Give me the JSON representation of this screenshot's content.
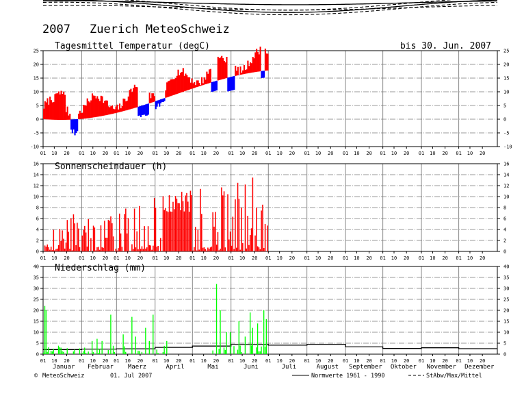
{
  "header": {
    "year": "2007",
    "station": "Zuerich MeteoSchweiz"
  },
  "chart_data": [
    {
      "type": "bar",
      "title": "Tagesmittel Temperatur (degC)",
      "date_label": "bis 30. Jun. 2007",
      "ylim": [
        -10,
        25
      ],
      "yticks": [
        "-10",
        "-5",
        "0",
        "5",
        "10",
        "15",
        "20",
        "25"
      ],
      "legend": [
        "Normwerte 1961 - 1990",
        "StAbw/Max/Mittel"
      ]
    },
    {
      "type": "bar",
      "title": "Sonnenscheindauer (h)",
      "ylim": [
        0,
        16
      ],
      "yticks": [
        "0",
        "2",
        "4",
        "6",
        "8",
        "10",
        "12",
        "14",
        "16"
      ]
    },
    {
      "type": "bar",
      "title": "Niederschlag (mm)",
      "ylim": [
        0,
        40
      ],
      "yticks": [
        "0",
        "5",
        "10",
        "15",
        "20",
        "25",
        "30",
        "35",
        "40"
      ]
    }
  ],
  "axis": {
    "day_ticks": [
      "01",
      "10",
      "20"
    ],
    "months": [
      "Januar",
      "Februar",
      "Maerz",
      "April",
      "Mai",
      "Juni",
      "Juli",
      "August",
      "September",
      "Oktober",
      "November",
      "Dezember"
    ]
  },
  "footer": {
    "copyright_symbol": "©",
    "copyright": "MeteoSchweiz",
    "date": "01. Jul 2007",
    "legend_solid": "Normwerte 1961 - 1990",
    "legend_dashed": "StAbw/Max/Mittel"
  },
  "colors": {
    "warm": "#ff0000",
    "cold": "#0000ff",
    "sunshine": "#ff0000",
    "precipitation": "#00ff00",
    "line": "#000000",
    "grid": "#777777"
  }
}
